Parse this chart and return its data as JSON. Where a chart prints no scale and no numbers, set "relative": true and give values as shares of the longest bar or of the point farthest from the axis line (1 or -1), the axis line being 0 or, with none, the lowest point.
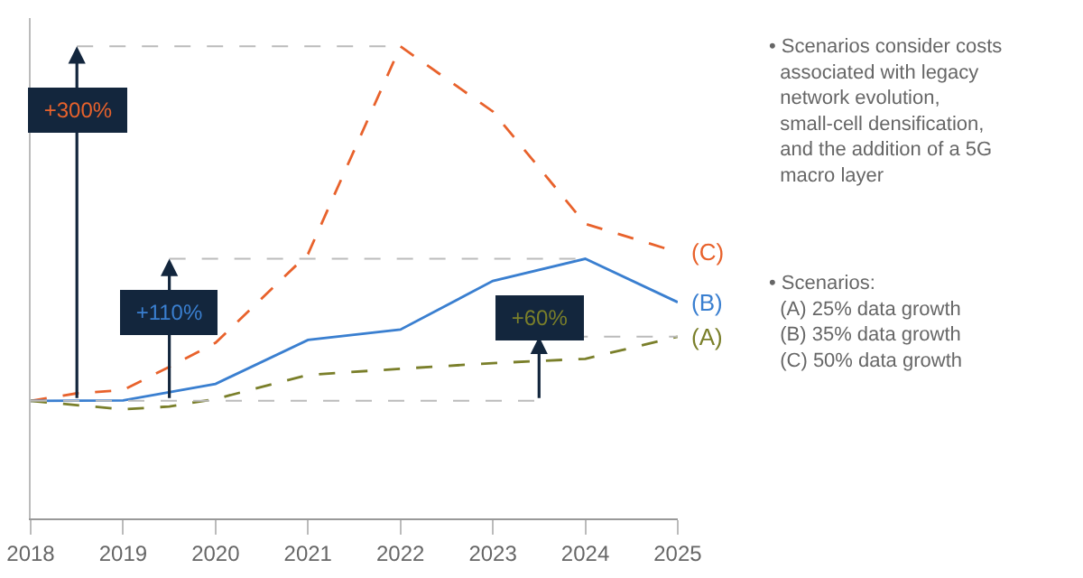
{
  "chart_data": {
    "type": "line",
    "relative": true,
    "xlim": [
      2018,
      2025
    ],
    "xticks": [
      2018,
      2019,
      2020,
      2021,
      2022,
      2023,
      2024,
      2025
    ],
    "legend": false,
    "ref_lines": [
      {
        "axis": "y",
        "value": 0.249,
        "color": "#bbbbbb",
        "line_style": "dashed"
      }
    ],
    "marker": "none",
    "series": [
      {
        "name": "(C)",
        "color": "#e8622c",
        "line_style": "dashed",
        "x": [
          2018,
          2018.5,
          2019,
          2019.5,
          2020,
          2021,
          2022,
          2023,
          2024,
          2025
        ],
        "values": [
          0.249,
          0.265,
          0.272,
          0.321,
          0.372,
          0.56,
          1,
          0.862,
          0.624,
          0.564
        ]
      },
      {
        "name": "(B)",
        "color": "#3a7fd0",
        "line_style": "solid",
        "x": [
          2018,
          2019,
          2020,
          2021,
          2022,
          2023,
          2024,
          2025
        ],
        "values": [
          0.249,
          0.25,
          0.285,
          0.378,
          0.4,
          0.503,
          0.55,
          0.458
        ]
      },
      {
        "name": "(A)",
        "color": "#7a7f2a",
        "line_style": "dashed",
        "x": [
          2018,
          2019,
          2019.5,
          2020,
          2021,
          2022,
          2023,
          2024,
          2025
        ],
        "values": [
          0.249,
          0.231,
          0.237,
          0.253,
          0.304,
          0.317,
          0.329,
          0.338,
          0.385
        ]
      }
    ],
    "annotations": [
      "+300%",
      "+110%",
      "+60%",
      "• Scenarios consider costs associated with legacy network evolution, small-cell densification, and the addition of a 5G macro layer",
      "• Scenarios:\n(A) 25% data growth\n(B) 35% data growth\n(C) 50% data growth"
    ]
  }
}
